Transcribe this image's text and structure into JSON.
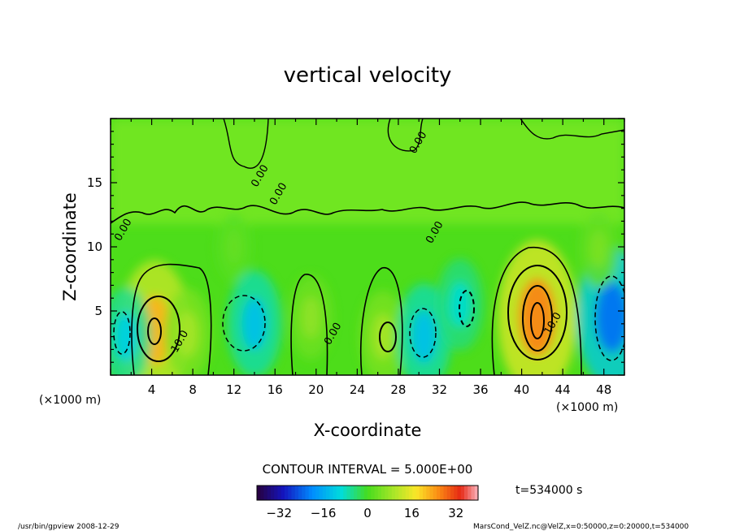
{
  "chart_data": {
    "type": "heatmap",
    "title": "vertical velocity",
    "xlabel": "X-coordinate",
    "ylabel": "Z-coordinate",
    "x_unit_left": "(×1000 m)",
    "x_unit_right": "(×1000 m)",
    "xlim": [
      0,
      50
    ],
    "ylim": [
      0,
      20
    ],
    "x_ticks": [
      4,
      8,
      12,
      16,
      20,
      24,
      28,
      32,
      36,
      40,
      44,
      48
    ],
    "y_ticks": [
      5,
      10,
      15
    ],
    "contour_interval_text": "CONTOUR INTERVAL = 5.000E+00",
    "contour_interval": 5,
    "contour_labels": [
      {
        "text": "0.00",
        "x": 1.5,
        "z": 11.2
      },
      {
        "text": "10.0",
        "x": 7.0,
        "z": 2.5
      },
      {
        "text": "0.00",
        "x": 14.8,
        "z": 15.4
      },
      {
        "text": "0.00",
        "x": 16.6,
        "z": 14.0
      },
      {
        "text": "0.00",
        "x": 21.9,
        "z": 3.1
      },
      {
        "text": "0.00",
        "x": 31.8,
        "z": 11.0
      },
      {
        "text": "0.00",
        "x": 30.2,
        "z": 18.0
      },
      {
        "text": "10.0",
        "x": 43.3,
        "z": 3.9
      }
    ],
    "cells": [
      {
        "x": 4.3,
        "z": 3.5,
        "value": 22
      },
      {
        "x": 7.5,
        "z": 3.2,
        "value": 9
      },
      {
        "x": 1.5,
        "z": 3.0,
        "value": -11
      },
      {
        "x": 12.0,
        "z": 10.0,
        "value": 3
      },
      {
        "x": 14.0,
        "z": 4.0,
        "value": -13
      },
      {
        "x": 19.5,
        "z": 4.5,
        "value": 7
      },
      {
        "x": 26.5,
        "z": 3.0,
        "value": 9
      },
      {
        "x": 30.5,
        "z": 3.0,
        "value": -13
      },
      {
        "x": 34.0,
        "z": 5.5,
        "value": -9
      },
      {
        "x": 41.5,
        "z": 4.5,
        "value": 26
      },
      {
        "x": 48.8,
        "z": 4.5,
        "value": -22
      },
      {
        "x": 47.5,
        "z": 9.8,
        "value": 5
      }
    ],
    "colorbar": {
      "min": -40,
      "max": 40,
      "ticks": [
        -32,
        -16,
        0,
        16,
        32
      ]
    },
    "time_label": "t=534000 s",
    "grid": false
  },
  "footer": {
    "left": "/usr/bin/gpview   2008-12-29",
    "right": "MarsCond_VelZ.nc@VelZ,x=0:50000,z=0:20000,t=534000"
  },
  "colors": {
    "background": "#4ddd1a",
    "positive_peak": "#e62814",
    "negative_peak": "#1d3dc8"
  }
}
